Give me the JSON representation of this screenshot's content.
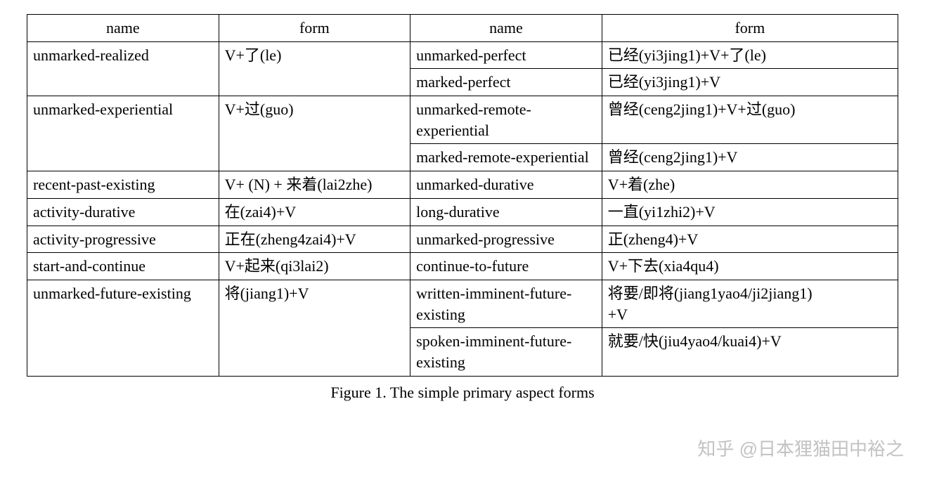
{
  "table": {
    "headers": [
      "name",
      "form",
      "name",
      "form"
    ],
    "caption": "Figure 1. The simple primary aspect forms",
    "font_family": "Times New Roman",
    "font_size_pt": 16,
    "border_color": "#000000",
    "background_color": "#ffffff",
    "column_widths_pct": [
      22,
      22,
      22,
      34
    ],
    "rows": [
      {
        "left_name": "unmarked-realized",
        "left_form": "V+了(le)",
        "left_rowspan": 2,
        "right": [
          {
            "name": "unmarked-perfect",
            "form": "已经(yi3jing1)+V+了(le)"
          },
          {
            "name": "marked-perfect",
            "form": "已经(yi3jing1)+V"
          }
        ]
      },
      {
        "left_name": "unmarked-experiential",
        "left_form": "V+过(guo)",
        "left_rowspan": 2,
        "right": [
          {
            "name": "unmarked-remote-experiential",
            "form": "曾经(ceng2jing1)+V+过(guo)"
          },
          {
            "name": "marked-remote-experiential",
            "form": "曾经(ceng2jing1)+V"
          }
        ]
      },
      {
        "left_name": "recent-past-existing",
        "left_form": "V+ (N) + 来着(lai2zhe)",
        "left_rowspan": 1,
        "right": [
          {
            "name": "unmarked-durative",
            "form": "V+着(zhe)"
          }
        ]
      },
      {
        "left_name": "activity-durative",
        "left_form": "在(zai4)+V",
        "left_rowspan": 1,
        "right": [
          {
            "name": "long-durative",
            "form": "一直(yi1zhi2)+V"
          }
        ]
      },
      {
        "left_name": "activity-progressive",
        "left_form": "正在(zheng4zai4)+V",
        "left_rowspan": 1,
        "right": [
          {
            "name": "unmarked-progressive",
            "form": "正(zheng4)+V"
          }
        ]
      },
      {
        "left_name": "start-and-continue",
        "left_form": "V+起来(qi3lai2)",
        "left_rowspan": 1,
        "right": [
          {
            "name": "continue-to-future",
            "form": "V+下去(xia4qu4)"
          }
        ]
      },
      {
        "left_name": "unmarked-future-existing",
        "left_form": "将(jiang1)+V",
        "left_rowspan": 2,
        "right": [
          {
            "name": "written-imminent-future-existing",
            "form": "将要/即将(jiang1yao4/ji2jiang1)\n+V"
          },
          {
            "name": "spoken-imminent-future-existing",
            "form": "就要/快(jiu4yao4/kuai4)+V"
          }
        ]
      }
    ]
  },
  "watermark": "知乎 @日本狸猫田中裕之"
}
